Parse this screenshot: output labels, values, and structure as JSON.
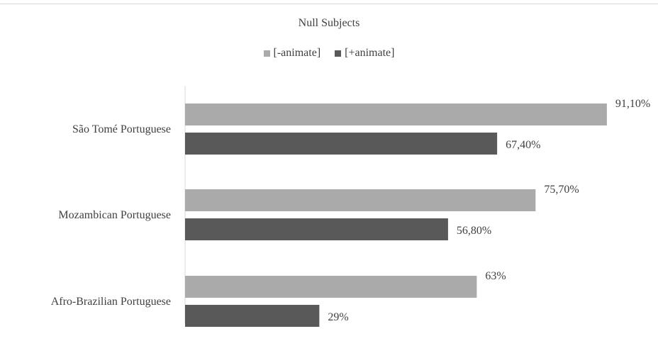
{
  "chart_data": {
    "type": "bar",
    "orientation": "horizontal",
    "title": "Null Subjects",
    "categories": [
      "São Tomé Portuguese",
      "Mozambican Portuguese",
      "Afro-Brazilian Portuguese"
    ],
    "series": [
      {
        "name": "[-animate]",
        "values": [
          91.1,
          75.7,
          63
        ],
        "labels": [
          "91,10%",
          "75,70%",
          "63%"
        ],
        "color": "#aaaaaa"
      },
      {
        "name": "[+animate]",
        "values": [
          67.4,
          56.8,
          29
        ],
        "labels": [
          "67,40%",
          "56,80%",
          "29%"
        ],
        "color": "#595959"
      }
    ],
    "xlim": [
      0,
      100
    ],
    "grid": false,
    "legend_position": "top"
  }
}
